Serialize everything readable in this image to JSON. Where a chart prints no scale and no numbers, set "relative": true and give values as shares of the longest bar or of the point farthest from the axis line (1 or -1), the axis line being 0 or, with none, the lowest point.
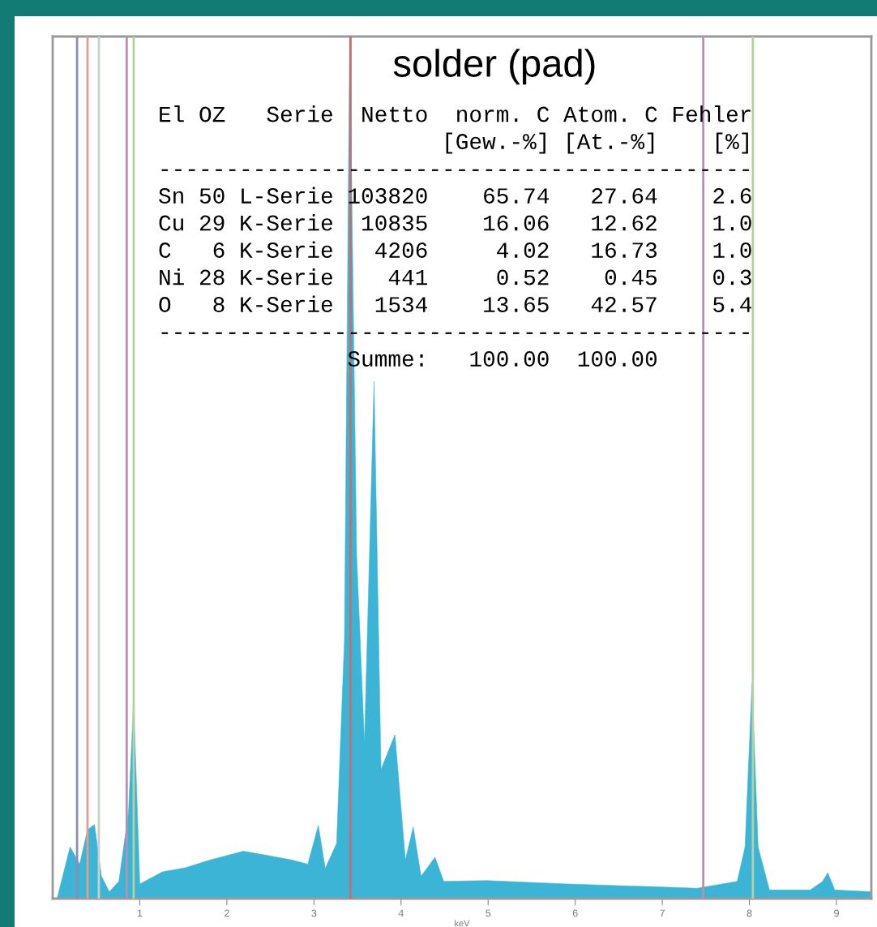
{
  "chart_data": {
    "type": "area",
    "title": "solder (pad)",
    "relative": true,
    "tick_labels": "x",
    "xlabel": "keV",
    "xlim": [
      0,
      9.4
    ],
    "xticks": [
      1,
      2,
      3,
      4,
      5,
      6,
      7,
      8,
      9
    ],
    "series": [
      {
        "color": "#3cb4d6",
        "x": [
          0.05,
          0.2,
          0.31,
          0.4,
          0.48,
          0.56,
          0.65,
          0.76,
          0.87,
          0.93,
          1.0,
          1.26,
          1.53,
          1.81,
          2.19,
          2.47,
          2.74,
          2.93,
          3.05,
          3.13,
          3.26,
          3.35,
          3.41,
          3.49,
          3.58,
          3.69,
          3.77,
          3.93,
          4.05,
          4.14,
          4.23,
          4.39,
          4.49,
          4.98,
          5.91,
          6.84,
          7.4,
          7.86,
          7.95,
          8.03,
          8.1,
          8.23,
          8.7,
          8.84,
          8.9,
          8.98,
          9.4
        ],
        "values": [
          0,
          0.06,
          0.04,
          0.08,
          0.086,
          0.026,
          0.008,
          0.02,
          0.1,
          0.23,
          0.017,
          0.031,
          0.036,
          0.045,
          0.055,
          0.05,
          0.045,
          0.04,
          0.085,
          0.035,
          0.064,
          0.3,
          1.0,
          0.4,
          0.18,
          0.6,
          0.15,
          0.19,
          0.045,
          0.083,
          0.026,
          0.048,
          0.02,
          0.021,
          0.017,
          0.014,
          0.012,
          0.02,
          0.06,
          0.25,
          0.06,
          0.01,
          0.01,
          0.02,
          0.03,
          0.01,
          0.008
        ]
      }
    ],
    "ref_lines": [
      {
        "axis": "x",
        "value": 0.28,
        "color": "#8c8cb4"
      },
      {
        "axis": "x",
        "value": 0.4,
        "color": "#e0a090"
      },
      {
        "axis": "x",
        "value": 0.53,
        "color": "#c8d0c8"
      },
      {
        "axis": "x",
        "value": 0.85,
        "color": "#b890b0"
      },
      {
        "axis": "x",
        "value": 0.93,
        "color": "#b8d0a0"
      },
      {
        "axis": "x",
        "value": 3.42,
        "color": "#c07070"
      },
      {
        "axis": "x",
        "value": 7.47,
        "color": "#b890b0"
      },
      {
        "axis": "x",
        "value": 8.04,
        "color": "#b8d0a0"
      }
    ],
    "annotations": [
      "El OZ   Serie  Netto  norm. C Atom. C Fehler",
      "                     [Gew.-%] [At.-%]    [%]",
      "--------------------------------------------",
      "Sn 50 L-Serie 103820    65.74   27.64    2.6",
      "Cu 29 K-Serie  10835    16.06   12.62    1.0",
      "C   6 K-Serie   4206     4.02   16.73    1.0",
      "Ni 28 K-Serie    441     0.52    0.45    0.3",
      "O   8 K-Serie   1534    13.65   42.57    5.4",
      "--------------------------------------------",
      "              Summe:   100.00  100.00"
    ]
  }
}
